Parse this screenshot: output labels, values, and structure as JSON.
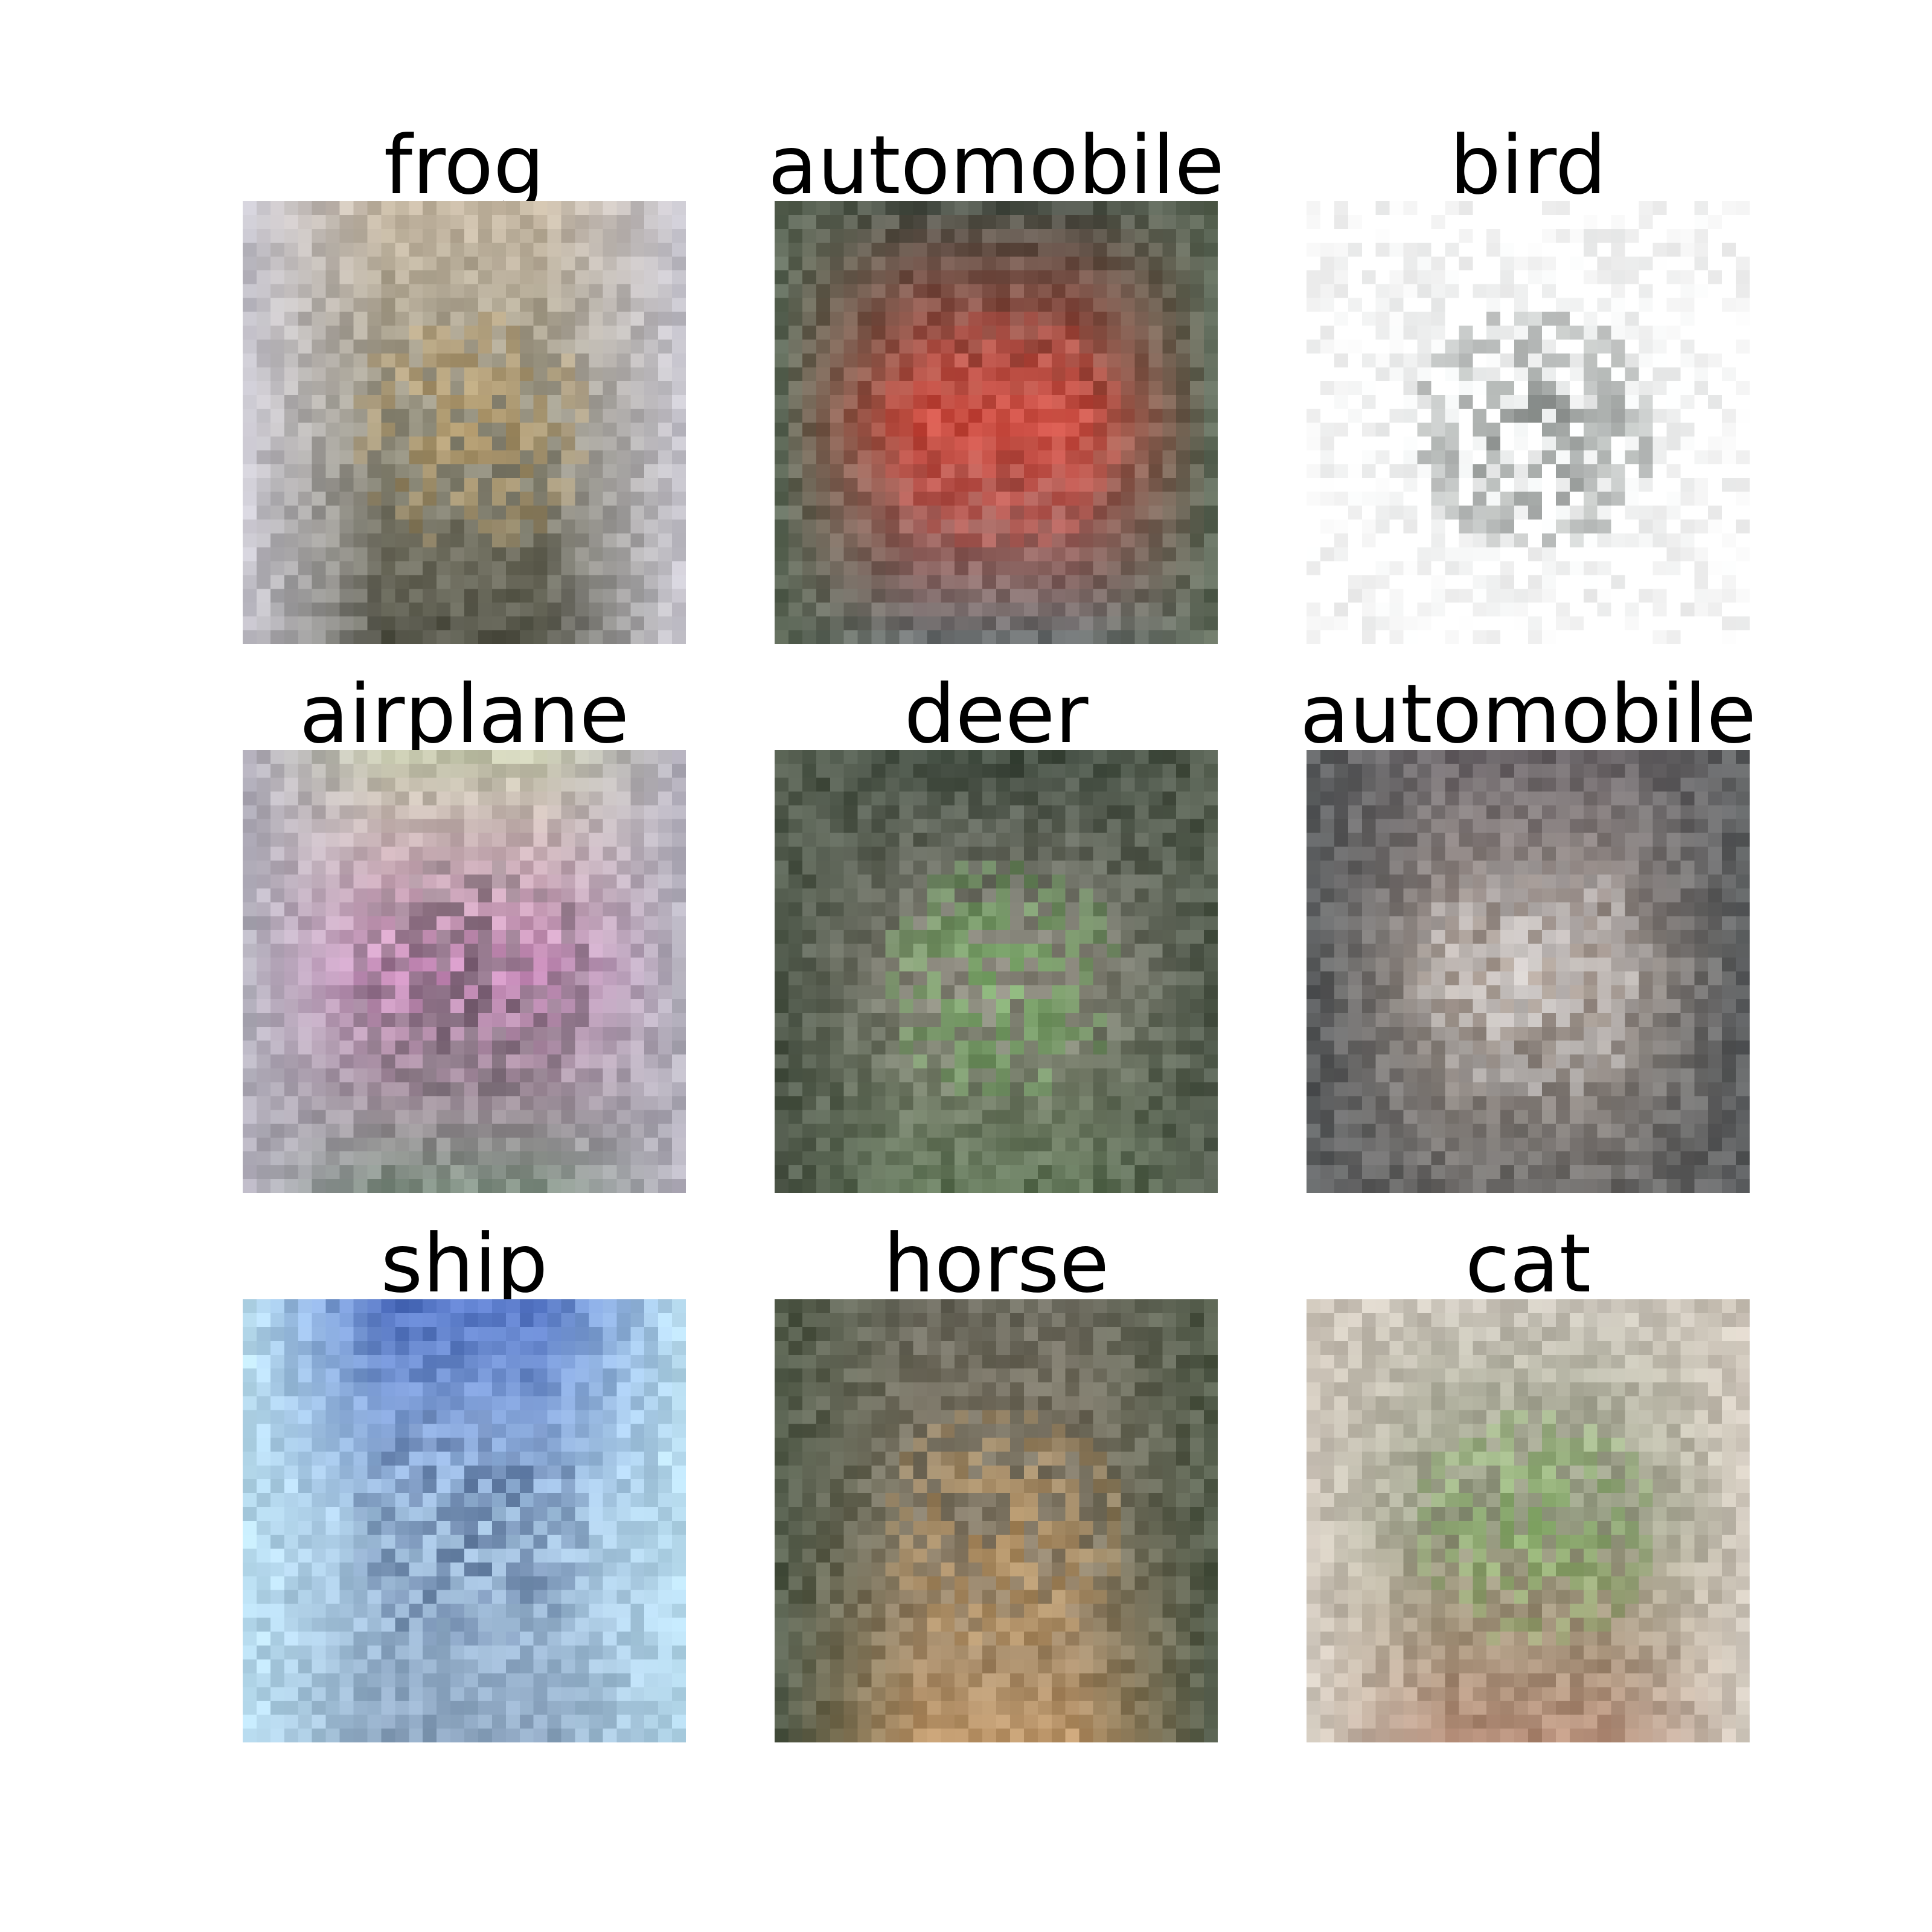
{
  "figure": {
    "panels": [
      {
        "label": "frog",
        "top": "#c7b9a4",
        "mid": "#8f8c7a",
        "low": "#4d4f43",
        "accent": "#cfa45a",
        "edge": "#c9c8d4",
        "bg": "#b8ad9c"
      },
      {
        "label": "automobile",
        "top": "#4c5248",
        "mid": "#d8473a",
        "low": "#6e7274",
        "accent": "#e25046",
        "edge": "#5e6a58",
        "bg": "#6b6d68"
      },
      {
        "label": "bird",
        "top": "#ffffff",
        "mid": "#f7f9f9",
        "low": "#ffffff",
        "accent": "#1b231e",
        "edge": "#ffffff",
        "bg": "#fbfcfc"
      },
      {
        "label": "airplane",
        "top": "#c9cbb0",
        "mid": "#d48fc6",
        "low": "#7b8c80",
        "accent": "#3a3a3c",
        "edge": "#b7b3c3",
        "bg": "#a7a698"
      },
      {
        "label": "deer",
        "top": "#3e4a3e",
        "mid": "#8f8b80",
        "low": "#5f7656",
        "accent": "#6fcf5a",
        "edge": "#4b5647",
        "bg": "#7d7b72"
      },
      {
        "label": "automobile",
        "top": "#6a6468",
        "mid": "#b2a49a",
        "low": "#6c6a68",
        "accent": "#f4f6fa",
        "edge": "#55585a",
        "bg": "#8a8684"
      },
      {
        "label": "ship",
        "top": "#4f6fc4",
        "mid": "#a9c7e4",
        "low": "#8da4bd",
        "accent": "#2a3f6a",
        "edge": "#bfe3f4",
        "bg": "#8fb2d6"
      },
      {
        "label": "horse",
        "top": "#6b6a5e",
        "mid": "#857b68",
        "low": "#c49a6a",
        "accent": "#e0a860",
        "edge": "#4f5a48",
        "bg": "#7a7466"
      },
      {
        "label": "cat",
        "top": "#cfcac0",
        "mid": "#8b9478",
        "low": "#b88e78",
        "accent": "#8fd46a",
        "edge": "#d7cfc4",
        "bg": "#a89e8e"
      }
    ]
  }
}
